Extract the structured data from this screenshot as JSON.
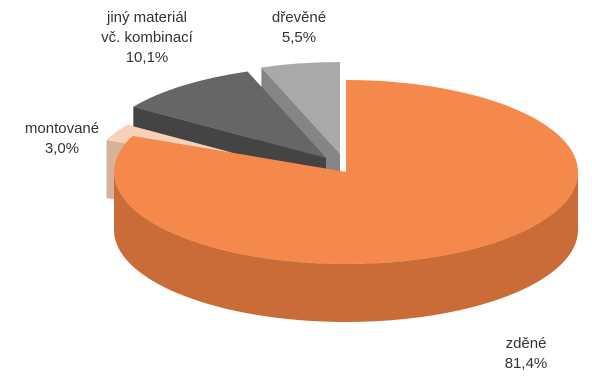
{
  "chart_data": {
    "type": "pie",
    "title": "",
    "slices": [
      {
        "label_lines": [
          "zděné",
          "81,4%"
        ],
        "value": 81.4,
        "top_color": "#f4894b",
        "side_color": "#c96c37"
      },
      {
        "label_lines": [
          "montované",
          "3,0%"
        ],
        "value": 3.0,
        "top_color": "#f8d2b8",
        "side_color": "#d8b298"
      },
      {
        "label_lines": [
          "jiný materiál",
          "vč. kombinací",
          "10,1%"
        ],
        "value": 10.1,
        "top_color": "#666666",
        "side_color": "#444444"
      },
      {
        "label_lines": [
          "dřevěné",
          "5,5%"
        ],
        "value": 5.5,
        "top_color": "#a9a9a9",
        "side_color": "#858585"
      }
    ]
  }
}
